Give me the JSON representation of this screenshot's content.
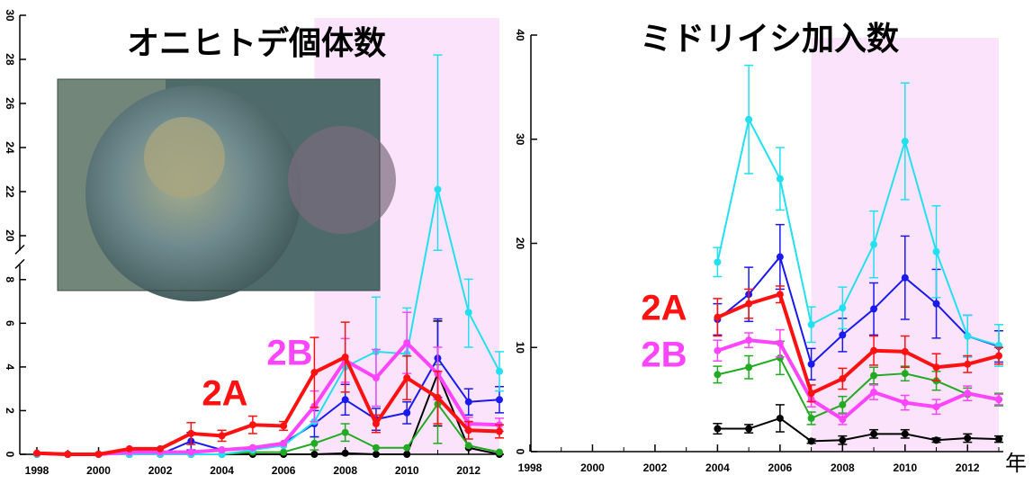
{
  "chart_data": [
    {
      "type": "line",
      "title": "オニヒトデ個体数",
      "x": [
        1998,
        1999,
        2000,
        2001,
        2002,
        2003,
        2004,
        2005,
        2006,
        2007,
        2008,
        2009,
        2010,
        2011,
        2012,
        2013
      ],
      "xlim": [
        1998,
        2013
      ],
      "xticks": [
        1998,
        2000,
        2002,
        2004,
        2006,
        2008,
        2010,
        2012
      ],
      "ylim": [
        0,
        30
      ],
      "yticks": [
        0,
        2,
        4,
        6,
        8,
        20,
        22,
        24,
        26,
        28,
        30
      ],
      "ybreak": [
        8,
        20
      ],
      "shade_x": [
        2007,
        2013
      ],
      "series": [
        {
          "color": "#000000",
          "values": [
            0,
            0,
            0,
            0,
            0,
            0,
            0,
            0,
            0,
            0,
            0.05,
            0,
            0,
            3.7,
            0.3,
            0
          ],
          "errors": [
            null,
            null,
            null,
            null,
            null,
            null,
            null,
            null,
            null,
            null,
            null,
            null,
            null,
            2.4,
            null,
            null
          ]
        },
        {
          "color": "#22aa22",
          "values": [
            0,
            0,
            0,
            0,
            0,
            0,
            0,
            0.1,
            0.1,
            0.5,
            1.0,
            0.3,
            0.3,
            2.3,
            0.4,
            0.1
          ],
          "errors": [
            null,
            null,
            null,
            null,
            null,
            null,
            null,
            null,
            null,
            0.3,
            0.4,
            null,
            null,
            1.8,
            null,
            null
          ]
        },
        {
          "color": "#1a1aee",
          "values": [
            0,
            0,
            0,
            0,
            0,
            0.6,
            0.2,
            0.3,
            0.5,
            1.4,
            2.5,
            1.6,
            1.9,
            4.4,
            2.4,
            2.5
          ],
          "errors": [
            null,
            null,
            null,
            null,
            null,
            0.4,
            null,
            null,
            null,
            0.6,
            0.7,
            0.5,
            0.5,
            1.8,
            0.6,
            0.6
          ]
        },
        {
          "color": "#22e0f0",
          "values": [
            0,
            0,
            0,
            0,
            0,
            0,
            0,
            0.2,
            0.4,
            1.5,
            4.0,
            4.7,
            4.6,
            22.1,
            6.5,
            3.8
          ],
          "errors": [
            null,
            null,
            null,
            null,
            null,
            null,
            null,
            null,
            null,
            null,
            null,
            2.5,
            2.1,
            6.1,
            1.6,
            0.9
          ]
        },
        {
          "name": "2B",
          "color": "#ff44ff",
          "values": [
            0.05,
            0,
            0,
            0.1,
            0.1,
            0.1,
            0.2,
            0.3,
            0.5,
            2.2,
            4.3,
            3.5,
            5.1,
            3.7,
            1.4,
            1.35
          ],
          "errors": [
            null,
            null,
            null,
            null,
            null,
            null,
            null,
            null,
            null,
            0.7,
            1.0,
            1.3,
            1.4,
            1.2,
            0.3,
            0.3
          ]
        },
        {
          "name": "2A",
          "color": "#ff1111",
          "values": [
            0.05,
            0,
            0,
            0.25,
            0.25,
            0.95,
            0.85,
            1.35,
            1.3,
            3.75,
            4.45,
            1.4,
            3.5,
            2.6,
            1.1,
            1.05
          ],
          "errors": [
            null,
            null,
            null,
            null,
            null,
            0.5,
            0.25,
            0.4,
            0.2,
            1.6,
            1.6,
            0.4,
            1.0,
            1.2,
            0.4,
            0.3
          ]
        }
      ]
    },
    {
      "type": "line",
      "title": "ミドリイシ加入数",
      "xlabel": "年",
      "x": [
        2004,
        2005,
        2006,
        2007,
        2008,
        2009,
        2010,
        2011,
        2012,
        2013
      ],
      "xlim": [
        1998,
        2013
      ],
      "xticks": [
        1998,
        2000,
        2002,
        2004,
        2006,
        2008,
        2010,
        2012
      ],
      "ylim": [
        0,
        40
      ],
      "yticks": [
        0,
        10,
        20,
        30,
        40
      ],
      "shade_x": [
        2007,
        2013
      ],
      "series": [
        {
          "color": "#000000",
          "values": [
            2.2,
            2.2,
            3.2,
            1.0,
            1.1,
            1.7,
            1.7,
            1.1,
            1.3,
            1.2
          ],
          "errors": [
            0.5,
            0.4,
            1.3,
            0.2,
            0.4,
            0.4,
            0.4,
            0.2,
            0.4,
            0.3
          ]
        },
        {
          "color": "#22aa22",
          "values": [
            7.4,
            8.1,
            9.0,
            3.2,
            4.5,
            7.3,
            7.5,
            6.8,
            5.5,
            5.0
          ],
          "errors": [
            0.8,
            1.1,
            1.6,
            0.6,
            0.8,
            0.8,
            0.7,
            0.9,
            0.6,
            0.6
          ]
        },
        {
          "color": "#1a1aee",
          "values": [
            12.7,
            15.1,
            18.7,
            8.4,
            11.2,
            13.7,
            16.7,
            14.2,
            11.1,
            10.1
          ],
          "errors": [
            1.5,
            2.6,
            3.1,
            1.5,
            1.6,
            2.5,
            4.0,
            3.3,
            2.0,
            1.5
          ]
        },
        {
          "color": "#22e0f0",
          "values": [
            18.2,
            31.9,
            26.2,
            12.2,
            13.8,
            19.9,
            29.8,
            19.2,
            11.1,
            10.2
          ],
          "errors": [
            1.4,
            5.2,
            3.0,
            1.7,
            2.0,
            3.2,
            5.6,
            4.4,
            2.0,
            2.0
          ]
        },
        {
          "name": "2B",
          "color": "#ff44ff",
          "values": [
            9.7,
            10.7,
            10.4,
            5.0,
            3.1,
            5.7,
            4.7,
            4.3,
            5.6,
            5.0
          ],
          "errors": [
            1.0,
            0.7,
            1.3,
            0.7,
            0.5,
            0.7,
            0.7,
            0.7,
            0.7,
            0.5
          ]
        },
        {
          "name": "2A",
          "color": "#ff1111",
          "values": [
            12.9,
            14.2,
            15.1,
            5.6,
            7.0,
            9.7,
            9.6,
            8.1,
            8.4,
            9.2
          ],
          "errors": [
            1.8,
            1.4,
            0.8,
            0.8,
            1.0,
            1.4,
            1.5,
            1.3,
            0.8,
            0.8
          ]
        }
      ]
    }
  ]
}
